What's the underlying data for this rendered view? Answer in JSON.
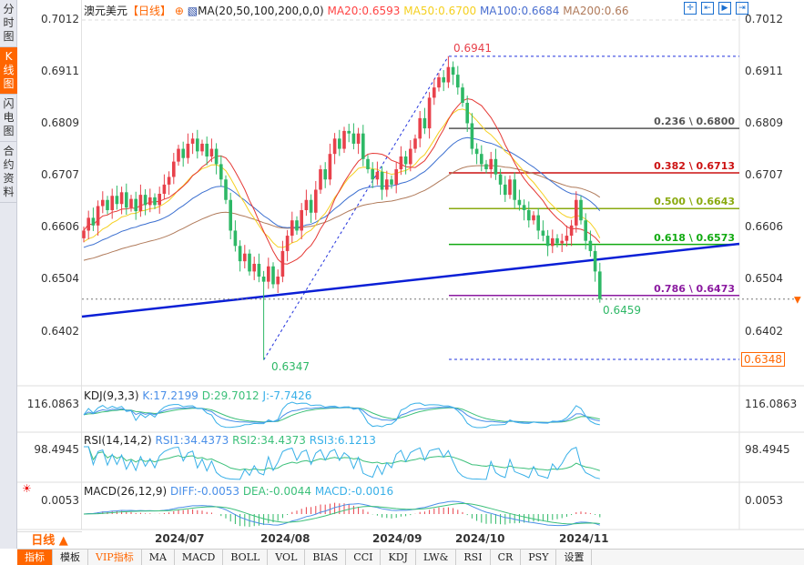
{
  "sidebar": {
    "tabs": [
      {
        "label": "分时图"
      },
      {
        "label": "K线图",
        "active": true
      },
      {
        "label": "闪电图"
      },
      {
        "label": "合约资料"
      }
    ]
  },
  "header": {
    "symbol": "澳元美元",
    "period": "【日线】",
    "ma_label": "MA(20,50,100,200,0,0)",
    "ma20": "MA20:0.6593",
    "ma50": "MA50:0.6700",
    "ma100": "MA100:0.6684",
    "ma200": "MA200:0.66"
  },
  "colors": {
    "up": "#e8414b",
    "down": "#2eb866",
    "ma20": "#e53935",
    "ma50": "#f5d020",
    "ma100": "#3b6fd0",
    "ma200": "#b07a5a",
    "accent": "#ff6600",
    "trend": "#0a1fd6"
  },
  "price_axis": {
    "labels": [
      "0.7012",
      "0.6911",
      "0.6809",
      "0.6707",
      "0.6606",
      "0.6504",
      "0.6402"
    ],
    "current_marker": "0.6348"
  },
  "annotations": {
    "high": "0.6941",
    "low": "0.6347",
    "last_low": "0.6459"
  },
  "fib": [
    {
      "label": "0.236 \\ 0.6800",
      "price": 0.68,
      "color": "#555555"
    },
    {
      "label": "0.382 \\ 0.6713",
      "price": 0.6713,
      "color": "#cc1111"
    },
    {
      "label": "0.500 \\ 0.6643",
      "price": 0.6643,
      "color": "#8aaa10"
    },
    {
      "label": "0.618 \\ 0.6573",
      "price": 0.6573,
      "color": "#11aa11"
    },
    {
      "label": "0.786 \\ 0.6473",
      "price": 0.6473,
      "color": "#8b1aa0"
    }
  ],
  "kdj": {
    "title": "KDJ(9,3,3)",
    "k": "K:17.2199",
    "d": "D:29.7012",
    "j": "J:-7.7426",
    "axis": "116.0863"
  },
  "rsi": {
    "title": "RSI(14,14,2)",
    "rsi1": "RSI1:34.4373",
    "rsi2": "RSI2:34.4373",
    "rsi3": "RSI3:6.1213",
    "axis": "98.4945"
  },
  "macd": {
    "title": "MACD(26,12,9)",
    "diff": "DIFF:-0.0053",
    "dea": "DEA:-0.0044",
    "macd": "MACD:-0.0016",
    "axis": "0.0053"
  },
  "x_axis": {
    "period": "日线 ▲",
    "labels": [
      "2024/07",
      "2024/08",
      "2024/09",
      "2024/10",
      "2024/11"
    ]
  },
  "bottom_tabs": [
    "指标",
    "模板",
    "VIP指标",
    "MA",
    "MACD",
    "BOLL",
    "VOL",
    "BIAS",
    "CCI",
    "KDJ",
    "LW&",
    "RSI",
    "CR",
    "PSY",
    "设置"
  ],
  "chart_data": {
    "type": "candlestick",
    "closes": [
      0.66,
      0.6625,
      0.661,
      0.6648,
      0.666,
      0.664,
      0.6668,
      0.6652,
      0.6675,
      0.6645,
      0.6662,
      0.6638,
      0.667,
      0.665,
      0.6665,
      0.665,
      0.6672,
      0.669,
      0.6705,
      0.6735,
      0.676,
      0.6742,
      0.677,
      0.678,
      0.6755,
      0.677,
      0.6745,
      0.676,
      0.673,
      0.67,
      0.666,
      0.66,
      0.657,
      0.654,
      0.6555,
      0.652,
      0.6535,
      0.651,
      0.65,
      0.653,
      0.6495,
      0.651,
      0.656,
      0.659,
      0.662,
      0.66,
      0.664,
      0.666,
      0.6635,
      0.668,
      0.672,
      0.67,
      0.675,
      0.678,
      0.676,
      0.6795,
      0.679,
      0.677,
      0.679,
      0.674,
      0.672,
      0.67,
      0.6715,
      0.668,
      0.67,
      0.669,
      0.672,
      0.6745,
      0.673,
      0.676,
      0.678,
      0.682,
      0.68,
      0.686,
      0.688,
      0.69,
      0.689,
      0.692,
      0.6905,
      0.688,
      0.685,
      0.681,
      0.676,
      0.675,
      0.673,
      0.672,
      0.674,
      0.671,
      0.669,
      0.667,
      0.67,
      0.666,
      0.665,
      0.664,
      0.662,
      0.663,
      0.66,
      0.659,
      0.657,
      0.6585,
      0.6575,
      0.658,
      0.659,
      0.661,
      0.666,
      0.662,
      0.658,
      0.656,
      0.652,
      0.6466
    ],
    "low_index": 38,
    "low": 0.6347,
    "high_index": 77,
    "high": 0.6941,
    "last_low": 0.6459,
    "ylim": [
      0.634,
      0.7025
    ],
    "ma_seeds": {
      "ma50": 0.6575,
      "ma100": 0.6565,
      "ma200": 0.654
    }
  }
}
